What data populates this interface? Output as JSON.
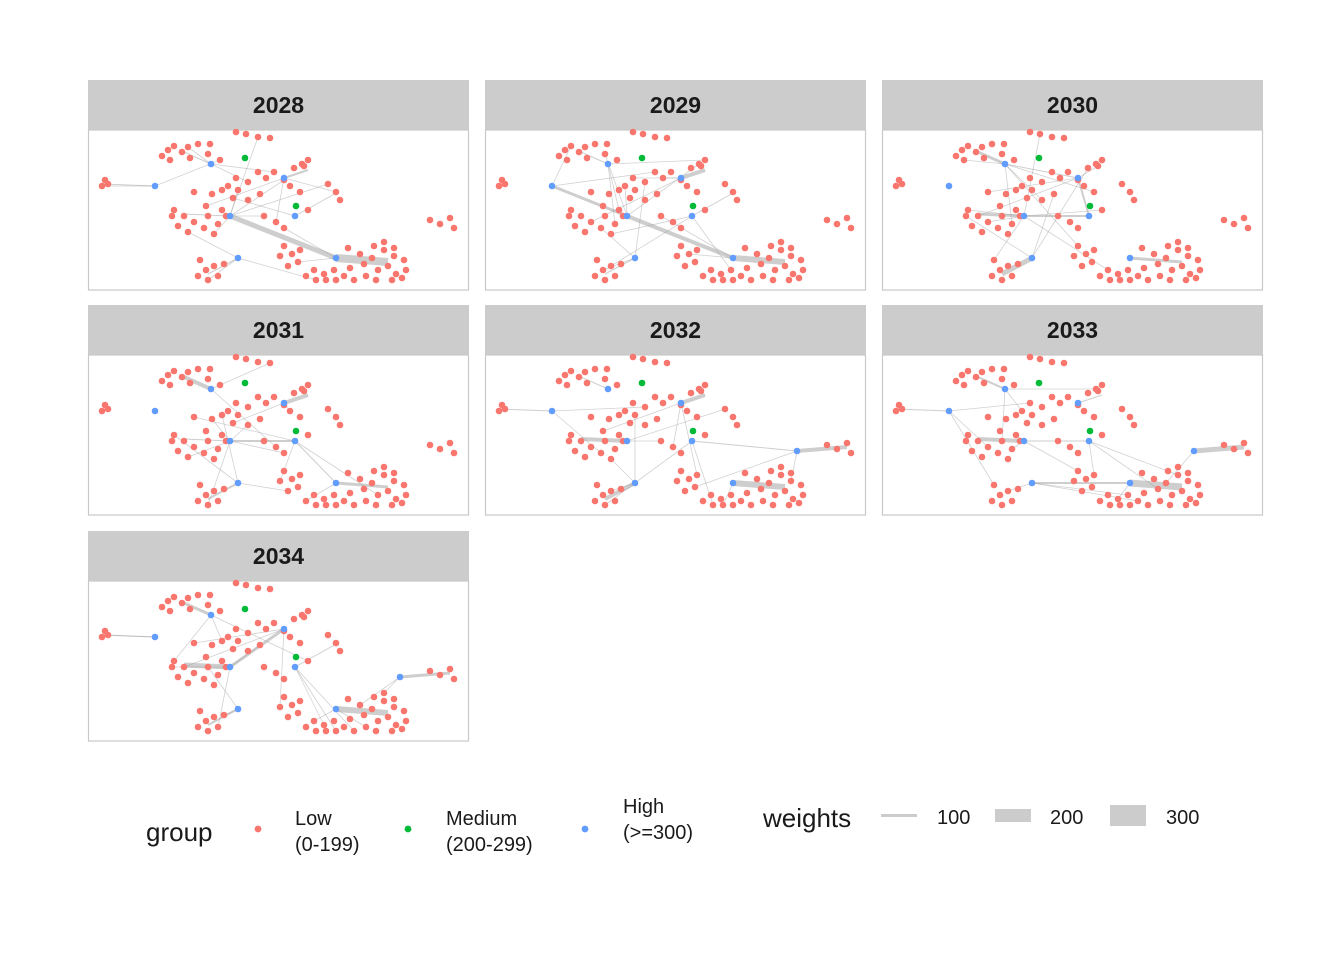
{
  "chart_data": {
    "type": "network-facets",
    "panels": [
      {
        "label": "2028"
      },
      {
        "label": "2029"
      },
      {
        "label": "2030"
      },
      {
        "label": "2031"
      },
      {
        "label": "2032"
      },
      {
        "label": "2033"
      },
      {
        "label": "2034"
      }
    ],
    "legend": {
      "group": {
        "title": "group",
        "entries": [
          {
            "lines": [
              "Low",
              "(0-199)"
            ],
            "color": "#F8766D"
          },
          {
            "lines": [
              "Medium",
              "(200-299)"
            ],
            "color": "#00BA38"
          },
          {
            "lines": [
              "High",
              "(>=300)"
            ],
            "color": "#619CFF"
          }
        ]
      },
      "weights": {
        "title": "weights",
        "entries": [
          {
            "label": "100",
            "value": 100
          },
          {
            "label": "200",
            "value": 200
          },
          {
            "label": "300",
            "value": 300
          }
        ]
      }
    },
    "colors": {
      "panel_border": "#c8c8c8",
      "strip_fill": "#cccccc",
      "edge": "#a6a6a6"
    }
  }
}
